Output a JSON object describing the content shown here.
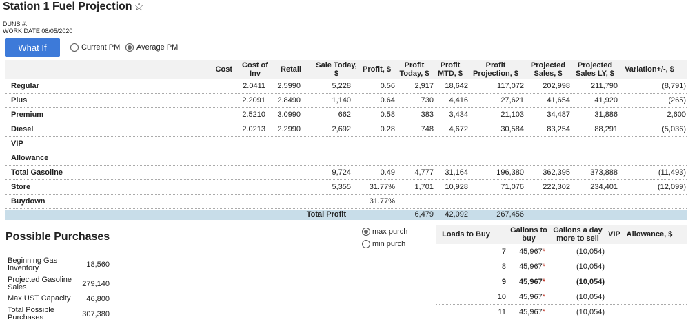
{
  "header": {
    "title": "Station 1 Fuel Projection",
    "duns_label": "DUNS #:",
    "work_date": "WORK DATE 08/05/2020"
  },
  "controls": {
    "what_if_label": "What If",
    "radio_current": "Current PM",
    "radio_average": "Average PM",
    "selected": "Average PM"
  },
  "grid": {
    "columns": [
      "Cost",
      "Cost of Inv",
      "Retail",
      "Sale Today, $",
      "Profit, $",
      "Profit Today, $",
      "Profit MTD, $",
      "Profit Projection, $",
      "Projected Sales, $",
      "Projected Sales LY, $",
      "Variation+/-, $"
    ],
    "rows": [
      {
        "label": "Regular",
        "cost": "",
        "cost_inv": "2.0411",
        "retail": "2.5990",
        "sale_today": "5,228",
        "profit": "0.56",
        "profit_today": "2,917",
        "profit_mtd": "18,642",
        "profit_proj": "117,072",
        "proj_sales": "202,998",
        "proj_sales_ly": "211,790",
        "variation": "(8,791)"
      },
      {
        "label": "Plus",
        "cost": "",
        "cost_inv": "2.2091",
        "retail": "2.8490",
        "sale_today": "1,140",
        "profit": "0.64",
        "profit_today": "730",
        "profit_mtd": "4,416",
        "profit_proj": "27,621",
        "proj_sales": "41,654",
        "proj_sales_ly": "41,920",
        "variation": "(265)"
      },
      {
        "label": "Premium",
        "cost": "",
        "cost_inv": "2.5210",
        "retail": "3.0990",
        "sale_today": "662",
        "profit": "0.58",
        "profit_today": "383",
        "profit_mtd": "3,434",
        "profit_proj": "21,103",
        "proj_sales": "34,487",
        "proj_sales_ly": "31,886",
        "variation": "2,600"
      },
      {
        "label": "Diesel",
        "cost": "",
        "cost_inv": "2.0213",
        "retail": "2.2990",
        "sale_today": "2,692",
        "profit": "0.28",
        "profit_today": "748",
        "profit_mtd": "4,672",
        "profit_proj": "30,584",
        "proj_sales": "83,254",
        "proj_sales_ly": "88,291",
        "variation": "(5,036)"
      },
      {
        "label": "VIP",
        "cost": "",
        "cost_inv": "",
        "retail": "",
        "sale_today": "",
        "profit": "",
        "profit_today": "",
        "profit_mtd": "",
        "profit_proj": "",
        "proj_sales": "",
        "proj_sales_ly": "",
        "variation": ""
      },
      {
        "label": "Allowance",
        "cost": "",
        "cost_inv": "",
        "retail": "",
        "sale_today": "",
        "profit": "",
        "profit_today": "",
        "profit_mtd": "",
        "profit_proj": "",
        "proj_sales": "",
        "proj_sales_ly": "",
        "variation": ""
      },
      {
        "label": "Total Gasoline",
        "cost": "",
        "cost_inv": "",
        "retail": "",
        "sale_today": "9,724",
        "profit": "0.49",
        "profit_today": "4,777",
        "profit_mtd": "31,164",
        "profit_proj": "196,380",
        "proj_sales": "362,395",
        "proj_sales_ly": "373,888",
        "variation": "(11,493)"
      },
      {
        "label": "Store",
        "cost": "",
        "cost_inv": "",
        "retail": "",
        "sale_today": "5,355",
        "profit": "31.77%",
        "profit_today": "1,701",
        "profit_mtd": "10,928",
        "profit_proj": "71,076",
        "proj_sales": "222,302",
        "proj_sales_ly": "234,401",
        "variation": "(12,099)"
      },
      {
        "label": "Buydown",
        "cost": "",
        "cost_inv": "",
        "retail": "",
        "sale_today": "",
        "profit": "31.77%",
        "profit_today": "",
        "profit_mtd": "",
        "profit_proj": "",
        "proj_sales": "",
        "proj_sales_ly": "",
        "variation": ""
      }
    ],
    "total": {
      "label": "Total Profit",
      "profit_today": "6,479",
      "profit_mtd": "42,092",
      "profit_proj": "267,456"
    }
  },
  "purchases": {
    "title": "Possible Purchases",
    "radio_max": "max purch",
    "radio_min": "min purch",
    "selected": "max purch",
    "items": [
      {
        "label": "Beginning Gas Inventory",
        "value": "18,560"
      },
      {
        "label": "Projected Gasoline Sales",
        "value": "279,140"
      },
      {
        "label": "Max UST Capacity",
        "value": "46,800"
      },
      {
        "label": "Total Possible Purchases",
        "value": "307,380"
      }
    ]
  },
  "loads": {
    "columns": [
      "Loads to Buy",
      "Gallons to buy",
      "Gallons a day more to sell",
      "VIP",
      "Allowance, $"
    ],
    "rows": [
      {
        "loads": "7",
        "gallons": "45,967",
        "mark": "*",
        "per_day": "(10,054)"
      },
      {
        "loads": "8",
        "gallons": "45,967",
        "mark": "*",
        "per_day": "(10,054)"
      },
      {
        "loads": "9",
        "gallons": "45,967",
        "mark": "*",
        "per_day": "(10,054)"
      },
      {
        "loads": "10",
        "gallons": "45,967",
        "mark": "*",
        "per_day": "(10,054)"
      },
      {
        "loads": "11",
        "gallons": "45,967",
        "mark": "*",
        "per_day": "(10,054)"
      }
    ],
    "selected_loads": "9"
  }
}
